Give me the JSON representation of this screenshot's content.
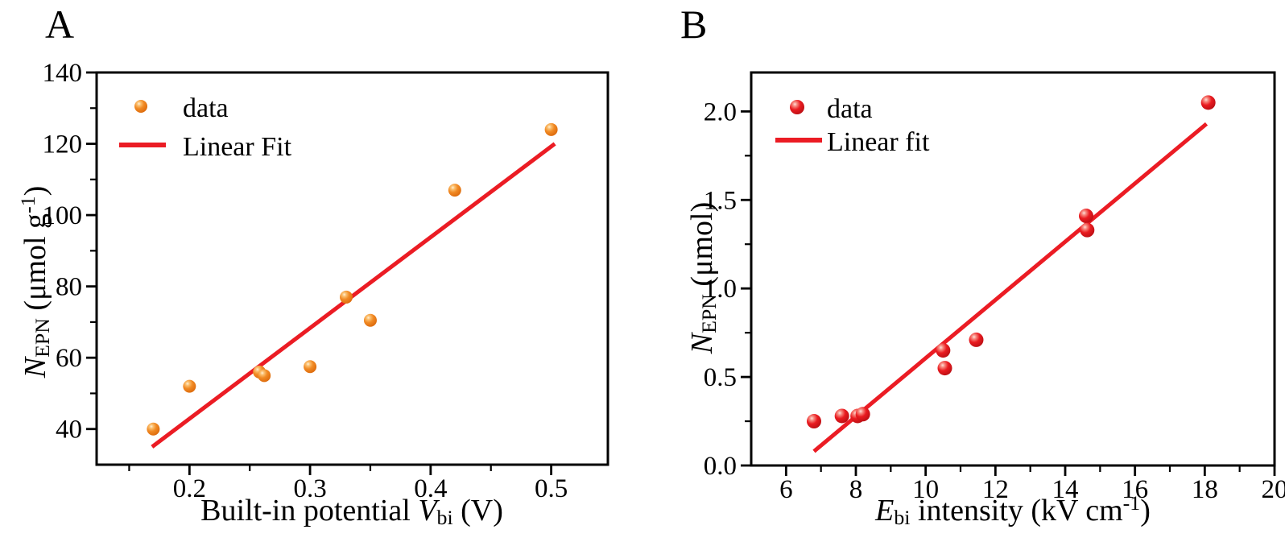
{
  "figure": {
    "background": "#FFFFFF",
    "axis_color": "#000000"
  },
  "chart_data": [
    {
      "type": "scatter",
      "panel_letter": "A",
      "xlabel_parts": [
        {
          "t": "Built-in potential ",
          "s": "n"
        },
        {
          "t": "V",
          "s": "i"
        },
        {
          "t": "bi",
          "s": "sub"
        },
        {
          "t": " (V)",
          "s": "n"
        }
      ],
      "ylabel_parts": [
        {
          "t": "N",
          "s": "i"
        },
        {
          "t": "EPN",
          "s": "sub"
        },
        {
          "t": " (μmol g",
          "s": "n"
        },
        {
          "t": "-1",
          "s": "sup"
        },
        {
          "t": ")",
          "s": "n"
        }
      ],
      "xlim": [
        0.123,
        0.547
      ],
      "ylim": [
        30,
        140
      ],
      "x_major_ticks": {
        "values": [
          0.2,
          0.3,
          0.4,
          0.5
        ],
        "labels": [
          "0.2",
          "0.3",
          "0.4",
          "0.5"
        ]
      },
      "x_minor_ticks": [
        0.15,
        0.25,
        0.35,
        0.45
      ],
      "y_major_ticks": {
        "values": [
          40,
          60,
          80,
          100,
          120,
          140
        ],
        "labels": [
          "40",
          "60",
          "80",
          "100",
          "120",
          "140"
        ]
      },
      "y_minor_ticks": [
        50,
        70,
        90,
        110,
        130
      ],
      "grid": false,
      "legend_position": "top-left-inside",
      "series": [
        {
          "name": "data",
          "kind": "scatter",
          "marker": "sphere",
          "point_gradient": [
            "#FFF0D8",
            "#FBC171",
            "#F18A24",
            "#D96508"
          ],
          "color": "#F18A24",
          "points": [
            [
              0.17,
              40
            ],
            [
              0.2,
              52
            ],
            [
              0.258,
              56
            ],
            [
              0.262,
              55
            ],
            [
              0.3,
              57.5
            ],
            [
              0.33,
              77
            ],
            [
              0.35,
              70.5
            ],
            [
              0.42,
              107
            ],
            [
              0.5,
              124
            ]
          ]
        },
        {
          "name": "Linear Fit",
          "kind": "line",
          "color": "#EB1C24",
          "points": [
            [
              0.169,
              35
            ],
            [
              0.503,
              120
            ]
          ]
        }
      ]
    },
    {
      "type": "scatter",
      "panel_letter": "B",
      "xlabel_parts": [
        {
          "t": "E",
          "s": "i"
        },
        {
          "t": "bi",
          "s": "sub"
        },
        {
          "t": " intensity (kV cm",
          "s": "n"
        },
        {
          "t": "-1",
          "s": "sup"
        },
        {
          "t": ")",
          "s": "n"
        }
      ],
      "ylabel_parts": [
        {
          "t": "N",
          "s": "i"
        },
        {
          "t": "EPN",
          "s": "sub"
        },
        {
          "t": " (μmol)",
          "s": "n"
        }
      ],
      "xlim": [
        5,
        20
      ],
      "ylim": [
        0,
        2.22
      ],
      "x_major_ticks": {
        "values": [
          6,
          8,
          10,
          12,
          14,
          16,
          18,
          20
        ],
        "labels": [
          "6",
          "8",
          "10",
          "12",
          "14",
          "16",
          "18",
          "20"
        ]
      },
      "x_minor_ticks": [
        7,
        9,
        11,
        13,
        15,
        17,
        19
      ],
      "y_major_ticks": {
        "values": [
          0.0,
          0.5,
          1.0,
          1.5,
          2.0
        ],
        "labels": [
          "0.0",
          "0.5",
          "1.0",
          "1.5",
          "2.0"
        ]
      },
      "y_minor_ticks": [
        0.25,
        0.75,
        1.25,
        1.75
      ],
      "grid": false,
      "legend_position": "top-left-inside",
      "series": [
        {
          "name": "data",
          "kind": "scatter",
          "marker": "sphere",
          "point_gradient": [
            "#FFE0DA",
            "#F78A80",
            "#EA1B20",
            "#B30D12"
          ],
          "color": "#EA1B20",
          "points": [
            [
              6.8,
              0.25
            ],
            [
              7.6,
              0.28
            ],
            [
              8.05,
              0.28
            ],
            [
              8.2,
              0.29
            ],
            [
              10.5,
              0.65
            ],
            [
              10.55,
              0.55
            ],
            [
              11.45,
              0.71
            ],
            [
              14.6,
              1.41
            ],
            [
              14.63,
              1.33
            ],
            [
              18.1,
              2.05
            ]
          ]
        },
        {
          "name": "Linear fit",
          "kind": "line",
          "color": "#EB1C24",
          "points": [
            [
              6.8,
              0.08
            ],
            [
              18.05,
              1.93
            ]
          ]
        }
      ]
    }
  ]
}
